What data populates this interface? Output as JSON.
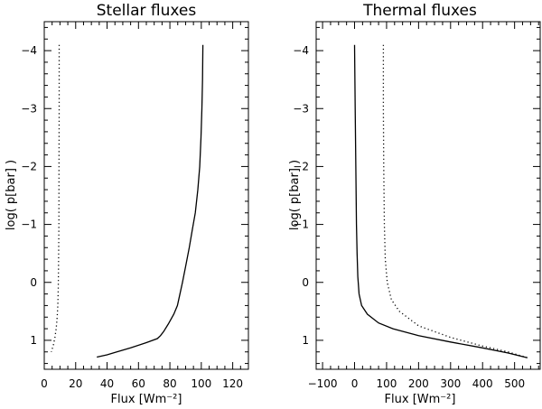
{
  "chart_data": [
    {
      "type": "line",
      "title": "Stellar fluxes",
      "xlabel": "Flux [Wm⁻²]",
      "ylabel": "log( p[bar] )",
      "xlim": [
        0,
        130
      ],
      "ylim": [
        1.5,
        -4.5
      ],
      "y_inverted": true,
      "grid": false,
      "xticks": [
        0,
        20,
        40,
        60,
        80,
        100,
        120
      ],
      "yticks": [
        1,
        0,
        -1,
        -2,
        -3,
        -4
      ],
      "series": [
        {
          "style": "solid",
          "x": [
            101.0,
            100.8,
            100.4,
            99.8,
            99.0,
            97.8,
            96.2,
            94.2,
            92.3,
            90.2,
            88.0,
            86.0,
            84.8,
            82.5,
            79.0,
            76.0,
            74.0,
            72.0,
            65.0,
            55.0,
            45.0,
            40.0,
            33.5
          ],
          "y": [
            -4.1,
            -3.5,
            -3.0,
            -2.5,
            -2.0,
            -1.6,
            -1.2,
            -0.9,
            -0.6,
            -0.3,
            0.0,
            0.25,
            0.4,
            0.55,
            0.72,
            0.85,
            0.92,
            0.97,
            1.04,
            1.13,
            1.21,
            1.25,
            1.29
          ]
        },
        {
          "style": "dotted",
          "x": [
            9.5,
            9.5,
            9.4,
            9.3,
            9.1,
            8.9,
            8.6,
            8.2,
            7.6,
            6.8,
            5.8,
            4.5
          ],
          "y": [
            -4.1,
            -3.0,
            -2.0,
            -1.0,
            -0.3,
            0.1,
            0.4,
            0.6,
            0.8,
            0.95,
            1.08,
            1.2
          ]
        }
      ]
    },
    {
      "type": "line",
      "title": "Thermal fluxes",
      "xlabel": "Flux [Wm⁻²]",
      "ylabel": "log( p[bar] )",
      "xlim": [
        -120,
        580
      ],
      "ylim": [
        1.5,
        -4.5
      ],
      "y_inverted": true,
      "grid": false,
      "xticks": [
        -100,
        0,
        100,
        200,
        300,
        400,
        500
      ],
      "yticks": [
        1,
        0,
        -1,
        -2,
        -3,
        -4
      ],
      "series": [
        {
          "style": "solid",
          "x": [
            0,
            2,
            4,
            6,
            8,
            10,
            14,
            22,
            40,
            75,
            120,
            200,
            300,
            400,
            480,
            540
          ],
          "y": [
            -4.1,
            -3.0,
            -2.0,
            -1.0,
            -0.5,
            -0.1,
            0.2,
            0.4,
            0.55,
            0.7,
            0.8,
            0.92,
            1.03,
            1.13,
            1.22,
            1.3
          ]
        },
        {
          "style": "dotted",
          "x": [
            90,
            90,
            91,
            93,
            96,
            102,
            115,
            140,
            200,
            300,
            400,
            480,
            540
          ],
          "y": [
            -4.1,
            -3.0,
            -2.0,
            -1.0,
            -0.4,
            0.0,
            0.3,
            0.5,
            0.75,
            0.95,
            1.1,
            1.2,
            1.3
          ]
        }
      ]
    }
  ]
}
